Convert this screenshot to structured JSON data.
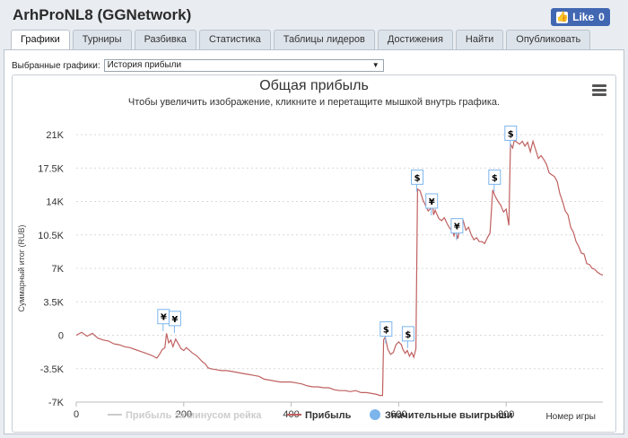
{
  "app": {
    "title": "ArhProNL8 (GGNetwork)"
  },
  "like": {
    "label": "Like",
    "count": "0"
  },
  "tabs": [
    {
      "label": "Графики",
      "active": true
    },
    {
      "label": "Турниры"
    },
    {
      "label": "Разбивка"
    },
    {
      "label": "Статистика"
    },
    {
      "label": "Таблицы лидеров"
    },
    {
      "label": "Достижения"
    },
    {
      "label": "Найти"
    },
    {
      "label": "Опубликовать"
    }
  ],
  "selector": {
    "label": "Выбранные графики:",
    "value": "История прибыли"
  },
  "chart_data": {
    "type": "line",
    "title": "Общая прибыль",
    "subtitle": "Чтобы увеличить изображение, кликните и перетащите мышкой внутрь графика.",
    "xlabel": "Номер игры",
    "ylabel": "Суммарный итог (RUB)",
    "xlim": [
      0,
      980
    ],
    "ylim": [
      -7000,
      21000
    ],
    "x_ticks": [
      "0",
      "200",
      "400",
      "600",
      "800"
    ],
    "y_ticks": [
      "21K",
      "17.5K",
      "14K",
      "10.5K",
      "7K",
      "3.5K",
      "0",
      "-3.5K",
      "-7K"
    ],
    "grid": true,
    "legend_position": "bottom",
    "legend": [
      {
        "name": "Прибыль за минусом рейка",
        "color": "#cccccc",
        "hidden": true
      },
      {
        "name": "Прибыль",
        "color": "#c06060"
      },
      {
        "name": "Значительные выигрыши",
        "color": "#7cb5ec"
      }
    ],
    "series": [
      {
        "name": "Прибыль",
        "color": "#c06060",
        "points": [
          [
            0,
            0
          ],
          [
            10,
            300
          ],
          [
            20,
            -100
          ],
          [
            30,
            200
          ],
          [
            40,
            -300
          ],
          [
            50,
            -500
          ],
          [
            60,
            -600
          ],
          [
            70,
            -900
          ],
          [
            80,
            -1000
          ],
          [
            90,
            -1200
          ],
          [
            100,
            -1300
          ],
          [
            110,
            -1500
          ],
          [
            120,
            -1700
          ],
          [
            130,
            -1900
          ],
          [
            140,
            -2100
          ],
          [
            150,
            -2400
          ],
          [
            155,
            -2000
          ],
          [
            160,
            -1500
          ],
          [
            165,
            -1300
          ],
          [
            168,
            200
          ],
          [
            172,
            -800
          ],
          [
            176,
            -500
          ],
          [
            180,
            -1200
          ],
          [
            185,
            -400
          ],
          [
            190,
            -900
          ],
          [
            195,
            -1400
          ],
          [
            200,
            -1600
          ],
          [
            205,
            -1300
          ],
          [
            215,
            -1800
          ],
          [
            225,
            -2200
          ],
          [
            235,
            -2800
          ],
          [
            240,
            -3000
          ],
          [
            245,
            -3400
          ],
          [
            250,
            -3500
          ],
          [
            260,
            -3600
          ],
          [
            270,
            -3700
          ],
          [
            280,
            -3700
          ],
          [
            290,
            -3800
          ],
          [
            300,
            -3900
          ],
          [
            310,
            -4000
          ],
          [
            320,
            -4100
          ],
          [
            330,
            -4200
          ],
          [
            340,
            -4300
          ],
          [
            350,
            -4600
          ],
          [
            360,
            -4700
          ],
          [
            370,
            -4800
          ],
          [
            380,
            -4900
          ],
          [
            390,
            -4900
          ],
          [
            400,
            -4900
          ],
          [
            410,
            -5000
          ],
          [
            420,
            -5100
          ],
          [
            430,
            -5300
          ],
          [
            440,
            -5400
          ],
          [
            450,
            -5400
          ],
          [
            460,
            -5500
          ],
          [
            470,
            -5500
          ],
          [
            480,
            -5700
          ],
          [
            490,
            -5800
          ],
          [
            500,
            -5800
          ],
          [
            510,
            -5900
          ],
          [
            520,
            -5800
          ],
          [
            530,
            -6000
          ],
          [
            540,
            -6000
          ],
          [
            550,
            -6100
          ],
          [
            560,
            -6200
          ],
          [
            565,
            -6300
          ],
          [
            570,
            -6300
          ],
          [
            572,
            -500
          ],
          [
            575,
            -200
          ],
          [
            580,
            -1500
          ],
          [
            585,
            -2000
          ],
          [
            590,
            -1800
          ],
          [
            595,
            -1000
          ],
          [
            600,
            -700
          ],
          [
            605,
            -1000
          ],
          [
            608,
            -1500
          ],
          [
            612,
            -1900
          ],
          [
            616,
            -1600
          ],
          [
            620,
            -2200
          ],
          [
            624,
            -1800
          ],
          [
            628,
            -2300
          ],
          [
            632,
            -1400
          ],
          [
            635,
            15300
          ],
          [
            640,
            15100
          ],
          [
            645,
            14200
          ],
          [
            650,
            13600
          ],
          [
            655,
            13000
          ],
          [
            660,
            13300
          ],
          [
            663,
            13800
          ],
          [
            665,
            12600
          ],
          [
            668,
            13100
          ],
          [
            670,
            12800
          ],
          [
            675,
            12200
          ],
          [
            680,
            12000
          ],
          [
            685,
            12300
          ],
          [
            690,
            11700
          ],
          [
            695,
            11200
          ],
          [
            700,
            10900
          ],
          [
            703,
            10400
          ],
          [
            706,
            11000
          ],
          [
            710,
            10100
          ],
          [
            715,
            11500
          ],
          [
            720,
            12000
          ],
          [
            725,
            11000
          ],
          [
            730,
            11300
          ],
          [
            735,
            10500
          ],
          [
            740,
            10000
          ],
          [
            745,
            10200
          ],
          [
            750,
            9800
          ],
          [
            755,
            9800
          ],
          [
            760,
            9600
          ],
          [
            765,
            10200
          ],
          [
            770,
            10700
          ],
          [
            775,
            15200
          ],
          [
            780,
            14500
          ],
          [
            785,
            14000
          ],
          [
            790,
            13600
          ],
          [
            795,
            12900
          ],
          [
            800,
            13200
          ],
          [
            805,
            11500
          ],
          [
            808,
            20000
          ],
          [
            812,
            19600
          ],
          [
            815,
            20400
          ],
          [
            820,
            20200
          ],
          [
            825,
            20000
          ],
          [
            830,
            20300
          ],
          [
            835,
            19800
          ],
          [
            840,
            20200
          ],
          [
            845,
            19200
          ],
          [
            850,
            20300
          ],
          [
            855,
            19400
          ],
          [
            860,
            18500
          ],
          [
            865,
            18800
          ],
          [
            870,
            18400
          ],
          [
            875,
            17900
          ],
          [
            880,
            17000
          ],
          [
            885,
            16800
          ],
          [
            890,
            16600
          ],
          [
            895,
            16100
          ],
          [
            900,
            14800
          ],
          [
            905,
            14000
          ],
          [
            910,
            13000
          ],
          [
            915,
            12600
          ],
          [
            920,
            11300
          ],
          [
            925,
            10800
          ],
          [
            930,
            9800
          ],
          [
            935,
            9300
          ],
          [
            940,
            8600
          ],
          [
            945,
            8500
          ],
          [
            950,
            7500
          ],
          [
            955,
            7400
          ],
          [
            960,
            7000
          ],
          [
            965,
            6900
          ],
          [
            970,
            6600
          ],
          [
            975,
            6400
          ],
          [
            980,
            6300
          ]
        ]
      }
    ],
    "flags": [
      {
        "x": 160,
        "y": 1200,
        "label": "¥"
      },
      {
        "x": 181,
        "y": 1000,
        "label": "¥"
      },
      {
        "x": 574,
        "y": -100,
        "label": "$"
      },
      {
        "x": 615,
        "y": -600,
        "label": "$"
      },
      {
        "x": 632,
        "y": 15800,
        "label": "$"
      },
      {
        "x": 659,
        "y": 13300,
        "label": "¥"
      },
      {
        "x": 706,
        "y": 10700,
        "label": "¥"
      },
      {
        "x": 776,
        "y": 15800,
        "label": "$"
      },
      {
        "x": 806,
        "y": 20400,
        "label": "$"
      }
    ]
  }
}
